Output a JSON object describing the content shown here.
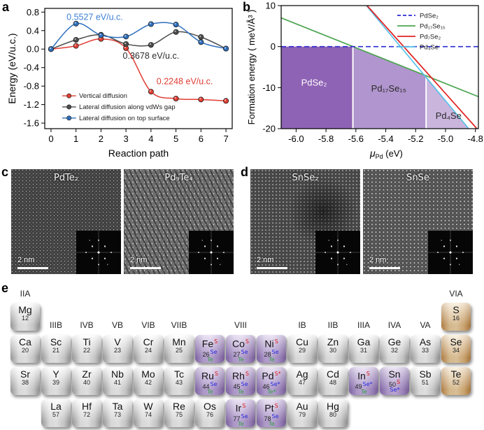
{
  "figure": {
    "panel_labels": {
      "a": "a",
      "b": "b",
      "c": "c",
      "d": "d",
      "e": "e"
    }
  },
  "panel_a": {
    "chart_data": {
      "type": "line",
      "xlabel": "Reaction path",
      "ylabel": "Energy (eV/u.c.)",
      "xlim": [
        -0.25,
        7.25
      ],
      "ylim": [
        -1.72,
        0.88
      ],
      "xticks": [
        0,
        1,
        2,
        3,
        4,
        5,
        6,
        7
      ],
      "yticks": [
        0.8,
        0.4,
        0.0,
        -0.4,
        -0.8,
        -1.2,
        -1.6
      ],
      "x": [
        0,
        1,
        2,
        3,
        4,
        5,
        6,
        7
      ],
      "series": [
        {
          "name": "Vertical diffusion",
          "color": "#e03c32",
          "values": [
            0.0,
            0.07,
            0.22,
            0.02,
            -0.92,
            -1.07,
            -1.09,
            -1.12
          ]
        },
        {
          "name": "Lateral diffusion along vdWs gap",
          "color": "#4b4b4b",
          "values": [
            0.0,
            0.2,
            0.31,
            0.11,
            0.09,
            0.37,
            0.26,
            0.01
          ]
        },
        {
          "name": "Lateral diffusion on top surface",
          "color": "#2e6fbd",
          "values": [
            0.0,
            0.55,
            0.3,
            0.27,
            0.54,
            0.53,
            0.15,
            0.01
          ]
        }
      ],
      "annotations": [
        {
          "text": "0.5527 eV/u.c.",
          "color": "#3b7fd6",
          "x": 1.75,
          "y": 0.63
        },
        {
          "text": "0.3678 eV/u.c.",
          "color": "#2b2b2b",
          "x": 4.0,
          "y": -0.21
        },
        {
          "text": "0.2248 eV/u.c.",
          "color": "#e03c32",
          "x": 5.35,
          "y": -0.76
        }
      ],
      "legend_y": [
        -1.01,
        -1.25,
        -1.49
      ]
    }
  },
  "panel_b": {
    "chart_data": {
      "type": "line",
      "xlabel_base": "μ",
      "xlabel_sub": "Pd",
      "xlabel_rest": " (eV)",
      "ylabel": "Formation energy ( meV/Å³ )",
      "xlim": [
        -6.1,
        -4.78
      ],
      "ylim": [
        -20,
        10
      ],
      "xticks": [
        -6.0,
        -5.8,
        -5.6,
        -5.4,
        -5.2,
        -5.0,
        -4.8
      ],
      "yticks": [
        10,
        0,
        -10,
        -20
      ],
      "lines": [
        {
          "name": "PdSe₂",
          "color": "#2b2bd0",
          "dash": true,
          "points": [
            [
              -6.1,
              0
            ],
            [
              -4.78,
              0
            ]
          ]
        },
        {
          "name": "Pd₁₇Se₁₅",
          "color": "#4da551",
          "dash": false,
          "points": [
            [
              -6.1,
              7.0
            ],
            [
              -4.78,
              -12.2
            ]
          ]
        },
        {
          "name": "Pd₇Se₂",
          "color": "#e02222",
          "dash": false,
          "points": [
            [
              -5.525,
              10
            ],
            [
              -4.79,
              -20
            ]
          ]
        },
        {
          "name": "Pd₄Se",
          "color": "#57c1e8",
          "dash": false,
          "points": [
            [
              -5.53,
              10
            ],
            [
              -4.845,
              -20
            ]
          ]
        }
      ],
      "regions": [
        {
          "label": "PdSe₂",
          "label_color": "#ffffff",
          "fill": "#8e62b4",
          "label_x": -5.88,
          "label_y": -9.5,
          "poly": [
            [
              -6.1,
              0
            ],
            [
              -5.62,
              0
            ],
            [
              -5.62,
              -20
            ],
            [
              -6.1,
              -20
            ]
          ]
        },
        {
          "label": "Pd₁₇Se₁₅",
          "label_color": "#2a2a2a",
          "fill": "#b195ce",
          "label_x": -5.38,
          "label_y": -11,
          "poly": [
            [
              -5.62,
              0
            ],
            [
              -5.13,
              -7.2
            ],
            [
              -5.13,
              -20
            ],
            [
              -5.62,
              -20
            ]
          ]
        },
        {
          "label": "Pd₄Se",
          "label_color": "#2a2a2a",
          "fill": "#cab5dd",
          "label_x": -4.98,
          "label_y": -17.6,
          "poly": [
            [
              -5.13,
              -7.2
            ],
            [
              -4.845,
              -20
            ],
            [
              -5.13,
              -20
            ]
          ]
        }
      ],
      "separators": [
        {
          "x": -5.62,
          "ytop": 0
        },
        {
          "x": -5.13,
          "ytop": -7.2
        }
      ]
    }
  },
  "panel_c": {
    "images": [
      {
        "title": "PdTe₂",
        "scalebar": "2 nm"
      },
      {
        "title": "Pd₉Te₄",
        "scalebar": "2 nm"
      }
    ]
  },
  "panel_d": {
    "images": [
      {
        "title": "SnSe₂",
        "scalebar": "2 nm"
      },
      {
        "title": "SnSe",
        "scalebar": "2 nm"
      }
    ]
  },
  "panel_e": {
    "headers": [
      {
        "row": 0,
        "col": 1,
        "label": "IIA"
      },
      {
        "row": 0,
        "col": 15,
        "label": "VIA"
      },
      {
        "row": 1,
        "col": 2,
        "label": "IIIB"
      },
      {
        "row": 1,
        "col": 3,
        "label": "IVB"
      },
      {
        "row": 1,
        "col": 4,
        "label": "VB"
      },
      {
        "row": 1,
        "col": 5,
        "label": "VIB"
      },
      {
        "row": 1,
        "col": 6,
        "label": "VIIB"
      },
      {
        "row": 1,
        "col": 8,
        "label": "VIII"
      },
      {
        "row": 1,
        "col": 10,
        "label": "IB"
      },
      {
        "row": 1,
        "col": 11,
        "label": "IIB"
      },
      {
        "row": 1,
        "col": 12,
        "label": "IIIA"
      },
      {
        "row": 1,
        "col": 13,
        "label": "IVA"
      },
      {
        "row": 1,
        "col": 14,
        "label": "VA"
      }
    ],
    "tiles": [
      {
        "r": 1,
        "c": 1,
        "sym": "Mg",
        "num": "12",
        "type": "metal"
      },
      {
        "r": 1,
        "c": 15,
        "sym": "S",
        "num": "16",
        "type": "chal"
      },
      {
        "r": 2,
        "c": 1,
        "sym": "Ca",
        "num": "20",
        "type": "metal"
      },
      {
        "r": 2,
        "c": 2,
        "sym": "Sc",
        "num": "21",
        "type": "metal"
      },
      {
        "r": 2,
        "c": 3,
        "sym": "Ti",
        "num": "22",
        "type": "metal"
      },
      {
        "r": 2,
        "c": 4,
        "sym": "V",
        "num": "23",
        "type": "metal"
      },
      {
        "r": 2,
        "c": 5,
        "sym": "Cr",
        "num": "24",
        "type": "metal"
      },
      {
        "r": 2,
        "c": 6,
        "sym": "Mn",
        "num": "25",
        "type": "metal"
      },
      {
        "r": 2,
        "c": 7,
        "sym": "Fe",
        "num": "26",
        "type": "active",
        "ms": {
          "t": "S",
          "c": "#e02020"
        },
        "mn": {
          "t": "Se",
          "c": "#2929e0"
        },
        "mb": {
          "t": "Te",
          "c": "#2f9e3f"
        }
      },
      {
        "r": 2,
        "c": 8,
        "sym": "Co",
        "num": "27",
        "type": "active",
        "ms": {
          "t": "S",
          "c": "#e02020"
        },
        "mn": {
          "t": "Se",
          "c": "#2929e0"
        },
        "mb": {
          "t": "Te",
          "c": "#2f9e3f"
        }
      },
      {
        "r": 2,
        "c": 9,
        "sym": "Ni",
        "num": "28",
        "type": "active",
        "ms": {
          "t": "S",
          "c": "#e02020"
        },
        "mn": {
          "t": "Se",
          "c": "#2929e0"
        },
        "mb": {
          "t": "Te",
          "c": "#2f9e3f"
        }
      },
      {
        "r": 2,
        "c": 10,
        "sym": "Cu",
        "num": "29",
        "type": "metal"
      },
      {
        "r": 2,
        "c": 11,
        "sym": "Zn",
        "num": "30",
        "type": "metal"
      },
      {
        "r": 2,
        "c": 12,
        "sym": "Ga",
        "num": "31",
        "type": "metal"
      },
      {
        "r": 2,
        "c": 13,
        "sym": "Ge",
        "num": "32",
        "type": "metal"
      },
      {
        "r": 2,
        "c": 14,
        "sym": "As",
        "num": "33",
        "type": "metal"
      },
      {
        "r": 2,
        "c": 15,
        "sym": "Se",
        "num": "34",
        "type": "chal"
      },
      {
        "r": 3,
        "c": 1,
        "sym": "Sr",
        "num": "38",
        "type": "metal"
      },
      {
        "r": 3,
        "c": 2,
        "sym": "Y",
        "num": "39",
        "type": "metal"
      },
      {
        "r": 3,
        "c": 3,
        "sym": "Zr",
        "num": "40",
        "type": "metal"
      },
      {
        "r": 3,
        "c": 4,
        "sym": "Nb",
        "num": "41",
        "type": "metal"
      },
      {
        "r": 3,
        "c": 5,
        "sym": "Mo",
        "num": "42",
        "type": "metal"
      },
      {
        "r": 3,
        "c": 6,
        "sym": "Tc",
        "num": "43",
        "type": "metal"
      },
      {
        "r": 3,
        "c": 7,
        "sym": "Ru",
        "num": "44",
        "type": "active",
        "ms": {
          "t": "S",
          "c": "#e02020"
        },
        "mn": {
          "t": "Se",
          "c": "#2929e0"
        },
        "mb": {
          "t": "Te",
          "c": "#2f9e3f"
        }
      },
      {
        "r": 3,
        "c": 8,
        "sym": "Rh",
        "num": "45",
        "type": "active",
        "ms": {
          "t": "S",
          "c": "#e02020"
        },
        "mn": {
          "t": "Se",
          "c": "#2929e0"
        },
        "mb": {
          "t": "Te",
          "c": "#2f9e3f"
        }
      },
      {
        "r": 3,
        "c": 9,
        "sym": "Pd",
        "num": "46",
        "type": "active",
        "ms": {
          "t": "S*",
          "c": "#e02020"
        },
        "mn": {
          "t": "Se*",
          "c": "#2929e0"
        },
        "mb": {
          "t": "Te*",
          "c": "#2f9e3f"
        }
      },
      {
        "r": 3,
        "c": 10,
        "sym": "Ag",
        "num": "47",
        "type": "metal"
      },
      {
        "r": 3,
        "c": 11,
        "sym": "Cd",
        "num": "48",
        "type": "metal"
      },
      {
        "r": 3,
        "c": 12,
        "sym": "In",
        "num": "49",
        "type": "active",
        "ms": {
          "t": "S",
          "c": "#e02020"
        },
        "mn": {
          "t": "Se*",
          "c": "#2929e0"
        },
        "mb": {
          "t": "Te",
          "c": "#2f9e3f"
        }
      },
      {
        "r": 3,
        "c": 13,
        "sym": "Sn",
        "num": "50",
        "type": "active",
        "mn": {
          "t": "S",
          "c": "#e02020"
        },
        "mb": {
          "t": "Se*",
          "c": "#2929e0"
        }
      },
      {
        "r": 3,
        "c": 14,
        "sym": "Sb",
        "num": "51",
        "type": "metal"
      },
      {
        "r": 3,
        "c": 15,
        "sym": "Te",
        "num": "52",
        "type": "chal"
      },
      {
        "r": 4,
        "c": 2,
        "sym": "La",
        "num": "57",
        "type": "metal"
      },
      {
        "r": 4,
        "c": 3,
        "sym": "Hf",
        "num": "72",
        "type": "metal"
      },
      {
        "r": 4,
        "c": 4,
        "sym": "Ta",
        "num": "73",
        "type": "metal"
      },
      {
        "r": 4,
        "c": 5,
        "sym": "W",
        "num": "74",
        "type": "metal"
      },
      {
        "r": 4,
        "c": 6,
        "sym": "Re",
        "num": "75",
        "type": "metal"
      },
      {
        "r": 4,
        "c": 7,
        "sym": "Os",
        "num": "76",
        "type": "metal"
      },
      {
        "r": 4,
        "c": 8,
        "sym": "Ir",
        "num": "77",
        "type": "active",
        "ms": {
          "t": "S",
          "c": "#e02020"
        },
        "mn": {
          "t": "Se",
          "c": "#2929e0"
        },
        "mb": {
          "t": "Te",
          "c": "#2f9e3f"
        }
      },
      {
        "r": 4,
        "c": 9,
        "sym": "Pt",
        "num": "78",
        "type": "active",
        "ms": {
          "t": "S",
          "c": "#e02020"
        },
        "mn": {
          "t": "Se",
          "c": "#2929e0"
        },
        "mb": {
          "t": "Te",
          "c": "#2f9e3f"
        }
      },
      {
        "r": 4,
        "c": 10,
        "sym": "Au",
        "num": "79",
        "type": "metal"
      },
      {
        "r": 4,
        "c": 11,
        "sym": "Hg",
        "num": "80",
        "type": "metal"
      }
    ]
  }
}
